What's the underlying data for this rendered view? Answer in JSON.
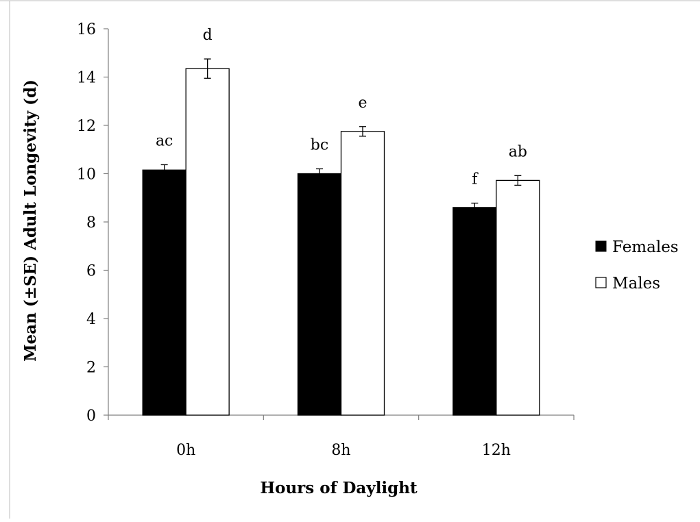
{
  "chart_data": {
    "type": "bar",
    "title": "",
    "xlabel": "Hours of Daylight",
    "ylabel": "Mean (±SE) Adult Longevity (d)",
    "categories": [
      "0h",
      "8h",
      "12h"
    ],
    "ylim": [
      0,
      16
    ],
    "yticks": [
      "0",
      "2",
      "4",
      "6",
      "8",
      "10",
      "12",
      "14",
      "16"
    ],
    "grid": false,
    "legend_position": "right",
    "series": [
      {
        "name": "Females",
        "color": "#000000",
        "values": [
          10.15,
          10.0,
          8.6
        ],
        "errors": [
          0.22,
          0.2,
          0.18
        ],
        "labels": [
          "ac",
          "bc",
          "f"
        ]
      },
      {
        "name": "Males",
        "color": "#ffffff",
        "values": [
          14.35,
          11.75,
          9.72
        ],
        "errors": [
          0.4,
          0.2,
          0.2
        ],
        "labels": [
          "d",
          "e",
          "ab"
        ]
      }
    ]
  }
}
